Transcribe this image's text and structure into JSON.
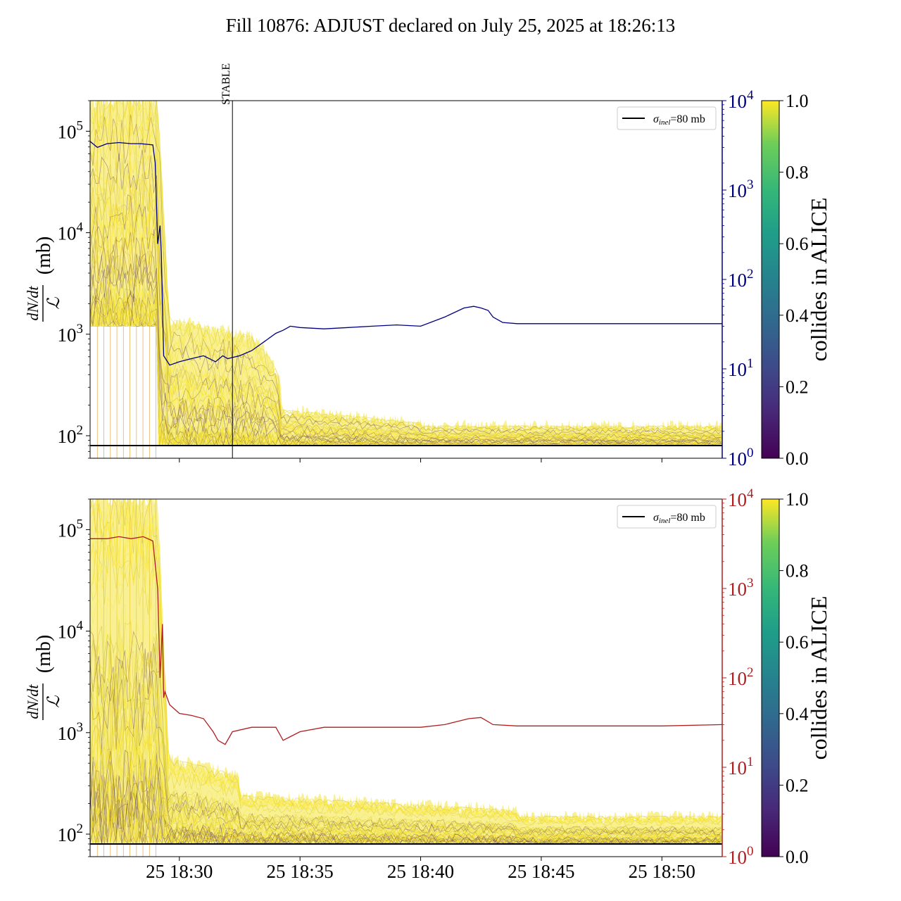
{
  "title": "Fill 10876: ADJUST declared on July 25, 2025 at 18:26:13",
  "colors": {
    "blue_axis": "#00007f",
    "red_axis": "#b01f1f",
    "ref_line": "#000000",
    "band": "#f0e020"
  },
  "chart_data": [
    {
      "type": "line",
      "panel": "top",
      "ylabel": "dN/dt / ℒ (mb)",
      "yscale": "log",
      "ylim": [
        60,
        200000
      ],
      "yticks": [
        "10²",
        "10³",
        "10⁴",
        "10⁵"
      ],
      "xlim": [
        "18:26.3",
        "18:52.5"
      ],
      "xticks": [],
      "right_axis": {
        "scale": "log",
        "ylim": [
          1,
          10000
        ],
        "ticks": [
          "10⁰",
          "10¹",
          "10²",
          "10³",
          "10⁴"
        ]
      },
      "annotation": {
        "label": "STABLE",
        "x": 32.2
      },
      "legend": {
        "label": "σinel=80 mb",
        "placement": "upper-right"
      },
      "reference_value": 80,
      "colorbar": {
        "label": "collides in ALICE",
        "ticks": [
          "0.0",
          "0.2",
          "0.4",
          "0.6",
          "0.8",
          "1.0"
        ]
      },
      "series_right": {
        "name": "",
        "x": [
          26.3,
          26.6,
          27.0,
          27.5,
          28.0,
          28.4,
          28.9,
          29.0,
          29.1,
          29.2,
          29.25,
          29.35,
          29.6,
          30.0,
          30.5,
          31.0,
          31.5,
          31.8,
          32.0,
          32.5,
          33.0,
          33.5,
          34.0,
          34.3,
          34.6,
          35.0,
          36.0,
          37.0,
          38.0,
          39.0,
          40.0,
          41.0,
          41.8,
          42.2,
          42.5,
          42.8,
          43.0,
          43.4,
          44.0,
          46.0,
          48.0,
          50.0,
          52.5
        ],
        "y": [
          3500,
          3000,
          3300,
          3400,
          3300,
          3300,
          3200,
          2000,
          250,
          400,
          200,
          14,
          11,
          12,
          13,
          14,
          12,
          14,
          13,
          14,
          16,
          20,
          25,
          27,
          30,
          29,
          28,
          29,
          30,
          31,
          30,
          38,
          48,
          50,
          48,
          45,
          38,
          33,
          32,
          32,
          32,
          32,
          32
        ]
      }
    },
    {
      "type": "line",
      "panel": "bottom",
      "ylabel": "dN/dt / ℒ (mb)",
      "yscale": "log",
      "ylim": [
        60,
        200000
      ],
      "yticks": [
        "10²",
        "10³",
        "10⁴",
        "10⁵"
      ],
      "xlim": [
        "18:26.3",
        "18:52.5"
      ],
      "xticks": [
        "25 18:30",
        "25 18:35",
        "25 18:40",
        "25 18:45",
        "25 18:50"
      ],
      "right_axis": {
        "scale": "log",
        "ylim": [
          1,
          10000
        ],
        "ticks": [
          "10⁰",
          "10¹",
          "10²",
          "10³",
          "10⁴"
        ]
      },
      "legend": {
        "label": "σinel=80 mb",
        "placement": "upper-right"
      },
      "reference_value": 80,
      "colorbar": {
        "label": "collides in ALICE",
        "ticks": [
          "0.0",
          "0.2",
          "0.4",
          "0.6",
          "0.8",
          "1.0"
        ]
      },
      "series_right": {
        "name": "",
        "x": [
          26.3,
          27.0,
          27.5,
          28.0,
          28.5,
          28.9,
          29.1,
          29.2,
          29.3,
          29.35,
          29.4,
          29.6,
          30.0,
          30.5,
          31.0,
          31.4,
          31.6,
          31.9,
          32.2,
          33.0,
          34.0,
          34.3,
          34.6,
          35.0,
          36.0,
          38.0,
          40.0,
          41.0,
          42.0,
          42.5,
          43.0,
          44.0,
          46.0,
          48.0,
          50.0,
          52.5
        ],
        "y": [
          3600,
          3600,
          3800,
          3600,
          3800,
          3400,
          1000,
          100,
          400,
          60,
          70,
          50,
          40,
          38,
          35,
          25,
          20,
          18,
          25,
          28,
          28,
          20,
          22,
          25,
          28,
          28,
          28,
          30,
          35,
          36,
          30,
          29,
          29,
          29,
          29,
          30
        ]
      }
    }
  ]
}
